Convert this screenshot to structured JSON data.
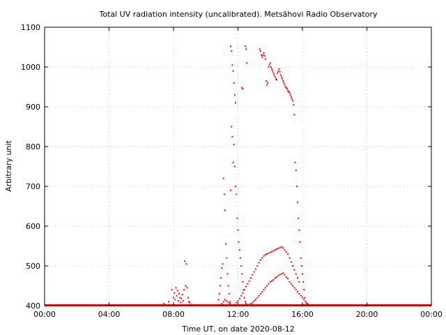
{
  "chart_data": {
    "type": "scatter",
    "title": "Total UV radiation intensity (uncalibrated). Metsähovi Radio Observatory",
    "xlabel": "Time UT, on date 2020-08-12",
    "ylabel": "Arbitrary unit",
    "xlim": [
      0,
      24
    ],
    "ylim": [
      400,
      1100
    ],
    "grid": true,
    "x_ticks": [
      {
        "value": 0,
        "label": "00:00"
      },
      {
        "value": 4,
        "label": "04:00"
      },
      {
        "value": 8,
        "label": "08:00"
      },
      {
        "value": 12,
        "label": "12:00"
      },
      {
        "value": 16,
        "label": "16:00"
      },
      {
        "value": 20,
        "label": "20:00"
      },
      {
        "value": 24,
        "label": "00:00"
      }
    ],
    "y_ticks": [
      {
        "value": 400,
        "label": "400"
      },
      {
        "value": 500,
        "label": "500"
      },
      {
        "value": 600,
        "label": "600"
      },
      {
        "value": 700,
        "label": "700"
      },
      {
        "value": 800,
        "label": "800"
      },
      {
        "value": 900,
        "label": "900"
      },
      {
        "value": 1000,
        "label": "1000"
      },
      {
        "value": 1100,
        "label": "1100"
      }
    ],
    "series": [
      {
        "color": "#ff0000",
        "baseline": {
          "y": 401,
          "x_from": 0,
          "x_to": 24
        },
        "x": [
          7.4,
          7.7,
          7.9,
          8.0,
          8.05,
          8.1,
          8.15,
          8.2,
          8.25,
          8.3,
          8.35,
          8.4,
          8.45,
          8.5,
          8.55,
          8.6,
          8.65,
          8.7,
          8.75,
          8.8,
          8.85,
          8.9,
          8.95,
          9.0,
          9.1,
          9.2,
          10.8,
          10.85,
          10.9,
          10.95,
          11.0,
          11.05,
          11.1,
          11.15,
          11.2,
          11.25,
          11.3,
          11.35,
          11.4,
          11.45,
          11.5,
          11.55,
          11.6,
          11.65,
          11.7,
          11.75,
          11.8,
          11.85,
          11.9,
          11.95,
          12.0,
          12.05,
          12.1,
          12.15,
          12.2,
          12.25,
          12.3,
          12.35,
          12.4,
          12.45,
          12.5,
          12.55,
          12.6,
          12.7,
          12.8,
          12.9,
          13.0,
          13.1,
          13.2,
          13.3,
          13.4,
          13.5,
          13.6,
          13.7,
          13.8,
          13.9,
          14.0,
          14.1,
          14.2,
          14.3,
          14.4,
          14.5,
          14.6,
          14.7,
          14.8,
          14.9,
          15.0,
          15.1,
          15.2,
          15.3,
          15.4,
          15.5,
          15.6,
          15.7,
          15.8,
          15.9,
          16.0,
          16.1,
          16.2,
          16.3,
          16.4,
          16.5,
          10.9,
          11.0,
          11.1,
          11.2,
          11.3,
          11.4,
          11.5,
          11.6,
          11.7,
          11.8,
          11.9,
          12.0,
          12.1,
          12.2,
          12.3,
          12.4,
          12.5,
          12.6,
          12.7,
          12.8,
          12.9,
          13.0,
          13.1,
          13.2,
          13.3,
          13.4,
          13.5,
          13.6,
          13.7,
          13.8,
          13.9,
          14.0,
          14.1,
          14.2,
          14.3,
          14.4,
          14.5,
          14.6,
          14.7,
          14.8,
          14.9,
          15.0,
          15.1,
          15.2,
          15.3,
          15.4,
          15.5,
          15.6,
          15.7,
          15.8,
          11.55,
          11.6,
          11.65,
          11.7,
          11.75,
          11.8,
          11.85,
          12.25,
          12.3,
          12.45,
          12.5,
          12.55,
          13.35,
          13.4,
          13.45,
          13.5,
          13.55,
          13.6,
          13.65,
          13.7,
          13.75,
          13.8,
          13.85,
          13.9,
          13.95,
          14.0,
          14.05,
          14.1,
          14.15,
          14.2,
          14.25,
          14.3,
          14.35,
          14.4,
          14.45,
          14.5,
          14.55,
          14.6,
          14.65,
          14.7,
          14.75,
          14.8,
          14.85,
          14.9,
          14.95,
          15.0,
          15.05,
          15.1,
          15.15,
          15.2,
          15.25,
          15.3,
          15.35,
          15.4,
          15.45,
          15.5,
          15.55,
          15.6,
          15.65,
          15.7,
          15.75,
          15.8,
          15.85,
          15.9,
          15.95,
          16.0,
          16.05,
          16.1,
          16.15,
          16.2,
          16.25,
          16.3,
          16.35,
          16.4
        ],
        "y": [
          405,
          410,
          440,
          420,
          432,
          415,
          445,
          425,
          438,
          412,
          430,
          420,
          408,
          418,
          428,
          412,
          440,
          512,
          450,
          505,
          445,
          420,
          410,
          408,
          403,
          402,
          415,
          430,
          450,
          470,
          495,
          505,
          720,
          680,
          640,
          555,
          520,
          480,
          450,
          430,
          410,
          690,
          850,
          825,
          760,
          805,
          750,
          700,
          680,
          620,
          590,
          560,
          540,
          520,
          500,
          480,
          460,
          440,
          420,
          410,
          405,
          402,
          401,
          403,
          405,
          408,
          412,
          415,
          420,
          425,
          430,
          435,
          440,
          445,
          450,
          455,
          460,
          462,
          465,
          470,
          472,
          475,
          478,
          480,
          482,
          478,
          472,
          468,
          460,
          455,
          450,
          445,
          440,
          435,
          430,
          425,
          420,
          415,
          410,
          405,
          403,
          401,
          402,
          405,
          410,
          415,
          412,
          408,
          405,
          402,
          401,
          403,
          408,
          412,
          418,
          425,
          432,
          440,
          448,
          455,
          462,
          470,
          478,
          485,
          492,
          500,
          508,
          515,
          520,
          525,
          528,
          530,
          532,
          534,
          536,
          538,
          540,
          542,
          544,
          546,
          548,
          545,
          540,
          535,
          530,
          520,
          510,
          500,
          490,
          480,
          470,
          460,
          1052,
          1040,
          1005,
          990,
          960,
          930,
          910,
          948,
          945,
          1052,
          1045,
          1010,
          1045,
          1040,
          1030,
          1025,
          1030,
          1035,
          1028,
          1020,
          965,
          955,
          960,
          1000,
          1005,
          1010,
          1000,
          995,
          990,
          985,
          980,
          975,
          970,
          968,
          985,
          990,
          995,
          988,
          980,
          975,
          970,
          965,
          960,
          955,
          950,
          948,
          945,
          940,
          938,
          935,
          930,
          925,
          920,
          915,
          905,
          880,
          760,
          740,
          700,
          660,
          620,
          590,
          560,
          520,
          500,
          480,
          460,
          440,
          420,
          410,
          405,
          402,
          401,
          400
        ]
      }
    ]
  }
}
